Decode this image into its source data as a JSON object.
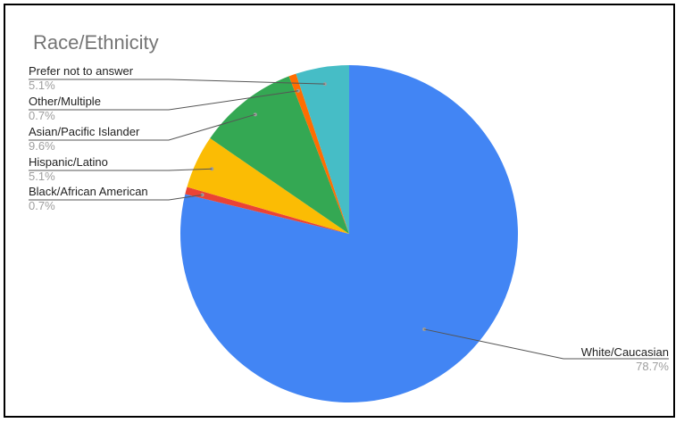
{
  "chart_data": {
    "type": "pie",
    "title": "Race/Ethnicity",
    "start_angle_deg": 0,
    "direction": "clockwise",
    "slices": [
      {
        "label": "White/Caucasian",
        "value": 78.7,
        "display": "78.7%",
        "color": "#4285f4"
      },
      {
        "label": "Black/African American",
        "value": 0.7,
        "display": "0.7%",
        "color": "#ea4335"
      },
      {
        "label": "Hispanic/Latino",
        "value": 5.1,
        "display": "5.1%",
        "color": "#fbbc04"
      },
      {
        "label": "Asian/Pacific Islander",
        "value": 9.6,
        "display": "9.6%",
        "color": "#34a853"
      },
      {
        "label": "Other/Multiple",
        "value": 0.7,
        "display": "0.7%",
        "color": "#ff6d01"
      },
      {
        "label": "Prefer not to answer",
        "value": 5.1,
        "display": "5.1%",
        "color": "#46bdc6"
      }
    ],
    "legend": "none",
    "labels_position": "outside-with-leader-lines"
  }
}
